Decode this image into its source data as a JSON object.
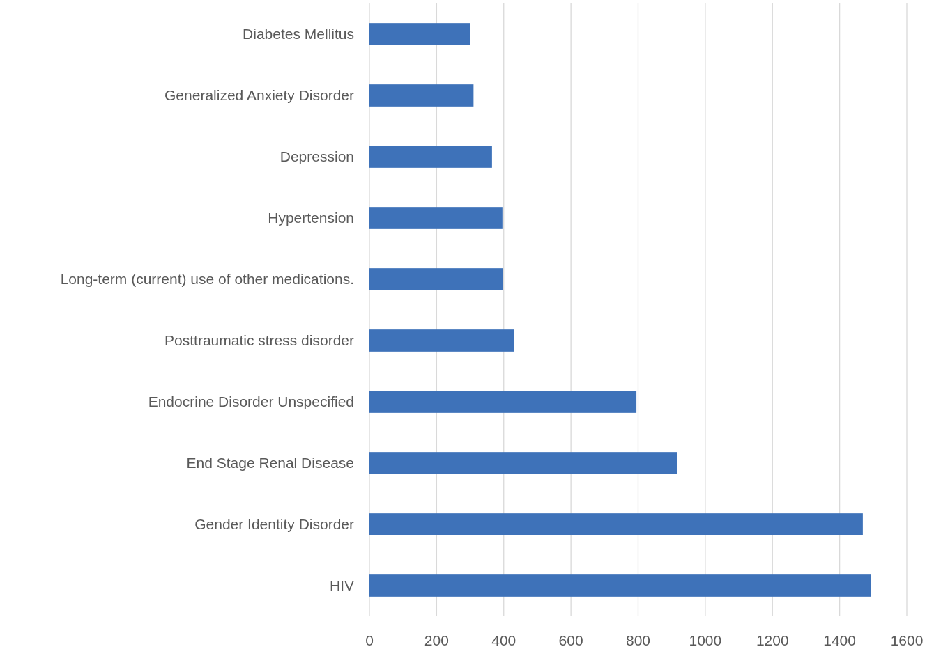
{
  "chart_data": {
    "type": "bar",
    "orientation": "horizontal",
    "categories": [
      "Diabetes Mellitus",
      "Generalized Anxiety Disorder",
      "Depression",
      "Hypertension",
      "Long-term (current) use of other medications.",
      "Posttraumatic stress disorder",
      "Endocrine Disorder Unspecified",
      "End Stage Renal Disease",
      "Gender Identity Disorder",
      "HIV"
    ],
    "values": [
      300,
      310,
      365,
      396,
      398,
      430,
      795,
      917,
      1469,
      1494
    ],
    "color": "#3e72b9",
    "xlim": [
      0,
      1600
    ],
    "xticks": [
      0,
      200,
      400,
      600,
      800,
      1000,
      1200,
      1400,
      1600
    ],
    "grid": "x"
  }
}
